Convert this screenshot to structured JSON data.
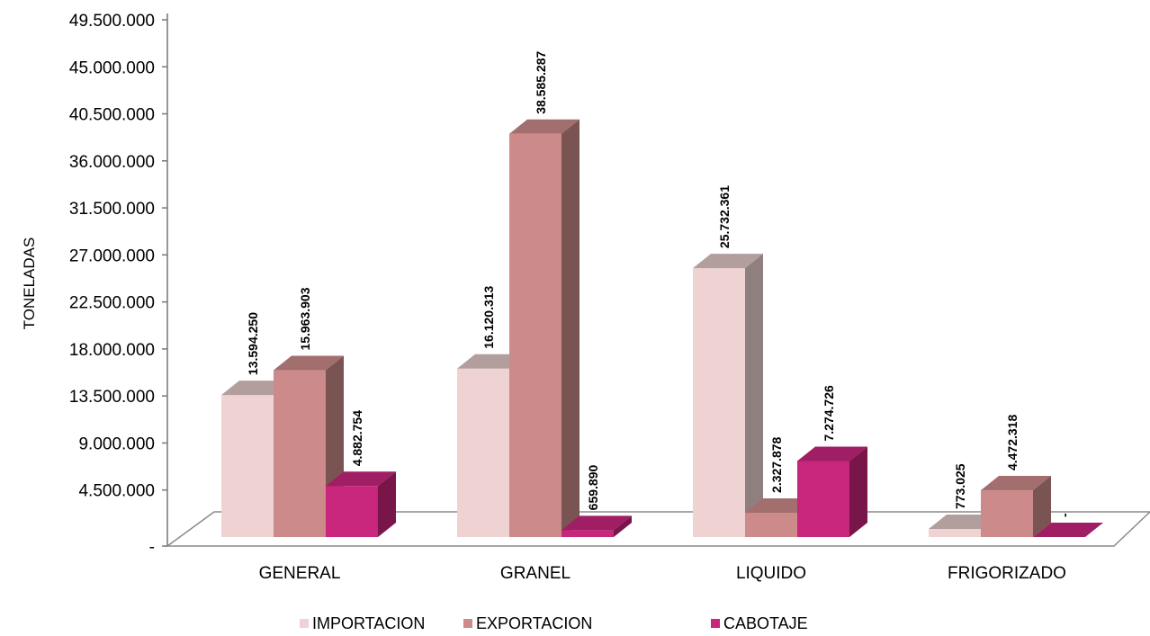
{
  "chart_data": {
    "type": "bar",
    "ylabel": "TONELADAS",
    "ylim": [
      0,
      49500000
    ],
    "yticks": [
      "-",
      "4.500.000",
      "9.000.000",
      "13.500.000",
      "18.000.000",
      "22.500.000",
      "27.000.000",
      "31.500.000",
      "36.000.000",
      "40.500.000",
      "45.000.000",
      "49.500.000"
    ],
    "categories": [
      "GENERAL",
      "GRANEL",
      "LIQUIDO",
      "FRIGORIZADO"
    ],
    "legend_position": "bottom",
    "series": [
      {
        "name": "IMPORTACION",
        "color": "#efd3d2",
        "values": [
          13594250,
          16120313,
          25732361,
          773025
        ],
        "labels": [
          "13.594.250",
          "16.120.313",
          "25.732.361",
          "773.025"
        ]
      },
      {
        "name": "EXPORTACION",
        "color": "#cc8a8a",
        "values": [
          15963903,
          38585287,
          2327878,
          4472318
        ],
        "labels": [
          "15.963.903",
          "38.585.287",
          "2.327.878",
          "4.472.318"
        ]
      },
      {
        "name": "CABOTAJE",
        "color": "#c8257c",
        "values": [
          4882754,
          659890,
          7274726,
          0
        ],
        "labels": [
          "4.882.754",
          "659.890",
          "7.274.726",
          "-"
        ]
      }
    ]
  }
}
